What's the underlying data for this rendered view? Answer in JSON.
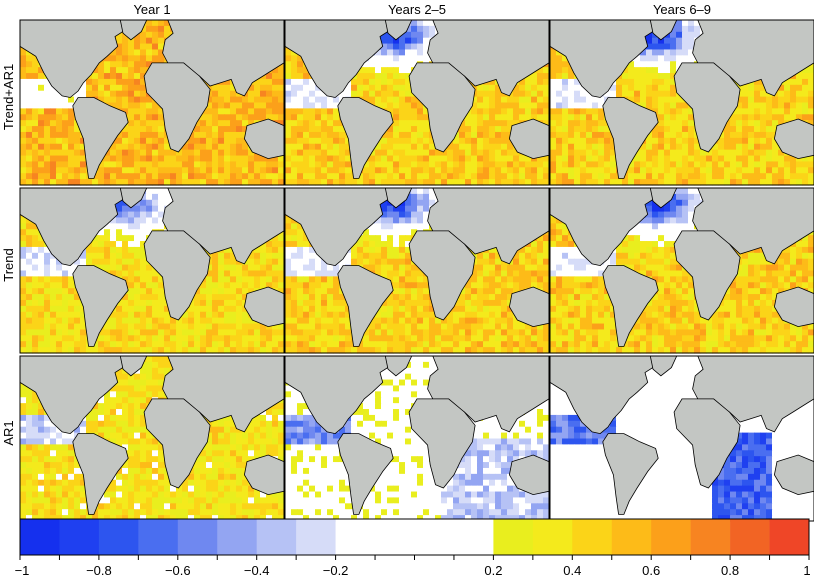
{
  "chart_data": {
    "type": "heatmap",
    "title": "",
    "columns": [
      "Year 1",
      "Years 2–5",
      "Years 6–9"
    ],
    "rows": [
      "Trend+AR1",
      "Trend",
      "AR1"
    ],
    "colorbar": {
      "min": -1,
      "max": 1,
      "tick_labels": [
        "−1",
        "−0.8",
        "−0.6",
        "−0.4",
        "−0.2",
        "0.2",
        "0.4",
        "0.6",
        "0.8",
        "1"
      ],
      "tick_values": [
        -1,
        -0.8,
        -0.6,
        -0.4,
        -0.2,
        0.2,
        0.4,
        0.6,
        0.8,
        1
      ],
      "bins": [
        -1,
        -0.9,
        -0.8,
        -0.7,
        -0.6,
        -0.5,
        -0.4,
        -0.3,
        -0.2,
        0.2,
        0.3,
        0.4,
        0.5,
        0.6,
        0.7,
        0.8,
        0.9,
        1
      ],
      "colors": [
        "#1530ee",
        "#1f40f0",
        "#2d55ef",
        "#4a6ef0",
        "#6f88f0",
        "#93a5f2",
        "#b6c2f5",
        "#d6dcf8",
        "#ffffff",
        "#e9ee1e",
        "#f4ea1c",
        "#fbd418",
        "#fdbb18",
        "#fca01a",
        "#f78421",
        "#f26424",
        "#ef4627",
        "#ef2a28"
      ]
    },
    "panels": [
      {
        "row": "Trend+AR1",
        "column": "Year 1",
        "mean": 0.55
      },
      {
        "row": "Trend+AR1",
        "column": "Years 2–5",
        "mean": 0.45
      },
      {
        "row": "Trend+AR1",
        "column": "Years 6–9",
        "mean": 0.45
      },
      {
        "row": "Trend",
        "column": "Year 1",
        "mean": 0.4
      },
      {
        "row": "Trend",
        "column": "Years 2–5",
        "mean": 0.45
      },
      {
        "row": "Trend",
        "column": "Years 6–9",
        "mean": 0.45
      },
      {
        "row": "AR1",
        "column": "Year 1",
        "mean": 0.35
      },
      {
        "row": "AR1",
        "column": "Years 2–5",
        "mean": 0.1
      },
      {
        "row": "AR1",
        "column": "Years 6–9",
        "mean": 0.0
      }
    ],
    "colors": {
      "land": "#c3c6c3",
      "coast": "#000000",
      "frame": "#000000"
    }
  }
}
